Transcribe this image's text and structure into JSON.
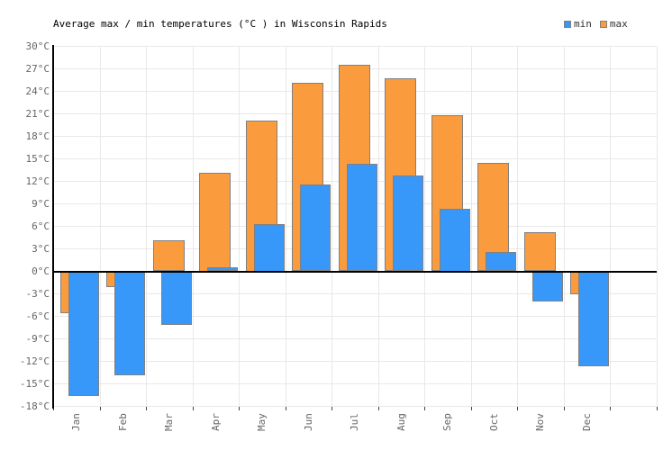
{
  "chart_data": {
    "type": "bar",
    "title": "Average max / min temperatures (°C ) in Wisconsin Rapids",
    "categories": [
      "Jan",
      "Feb",
      "Mar",
      "Apr",
      "May",
      "Jun",
      "Jul",
      "Aug",
      "Sep",
      "Oct",
      "Nov",
      "Dec"
    ],
    "series": [
      {
        "name": "min",
        "color": "#3898fa",
        "values": [
          -16.6,
          -13.9,
          -7.1,
          0.5,
          6.3,
          11.6,
          14.3,
          12.8,
          8.4,
          2.6,
          -4.0,
          -12.6
        ]
      },
      {
        "name": "max",
        "color": "#fa9c3d",
        "values": [
          -5.6,
          -2.1,
          4.1,
          13.2,
          20.1,
          25.1,
          27.5,
          25.7,
          20.8,
          14.5,
          5.2,
          -3.0
        ]
      }
    ],
    "unit": "°C",
    "ylim": [
      -18,
      30
    ],
    "ytick_step": 3,
    "ytick_labels": [
      "30°C",
      "27°C",
      "24°C",
      "21°C",
      "18°C",
      "15°C",
      "12°C",
      "9°C",
      "6°C",
      "3°C",
      "0°C",
      "-3°C",
      "-6°C",
      "-9°C",
      "-12°C",
      "-15°C",
      "-18°C"
    ],
    "grid": true,
    "legend_position": "top-right",
    "colors": {
      "min_series": "#3898fa",
      "max_series": "#fa9c3d",
      "bar_border": "#808080",
      "gridline": "#e8e8e8",
      "axis": "#000000",
      "tick_label": "#666666",
      "legend_text": "#333333",
      "background": "#ffffff"
    }
  }
}
